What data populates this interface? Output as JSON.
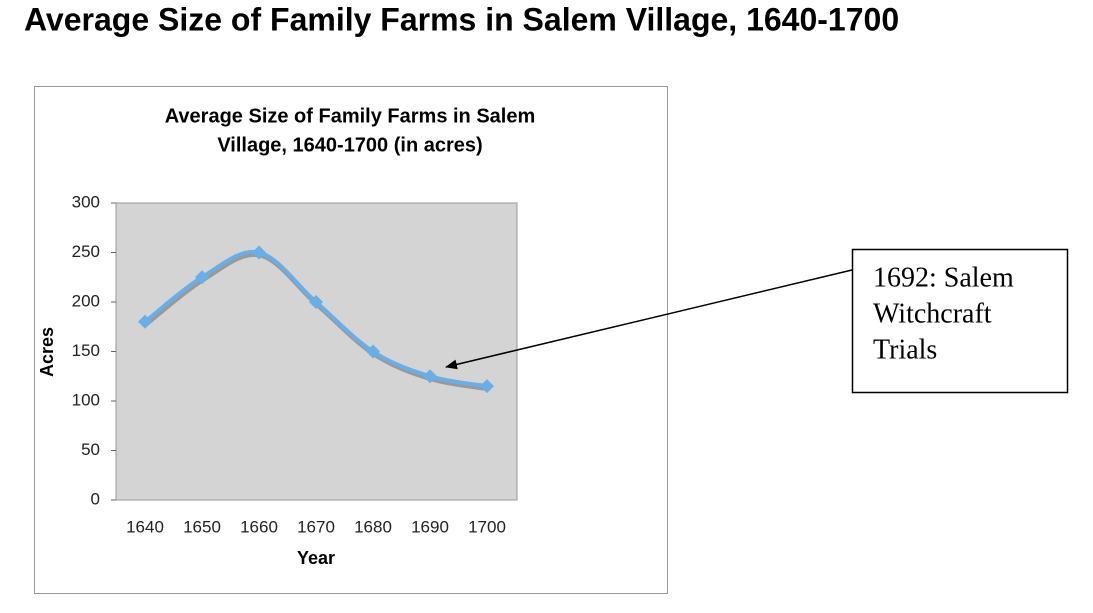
{
  "page_title": "Average Size of Family Farms in Salem Village, 1640-1700",
  "chart_data": {
    "type": "line",
    "title": [
      "Average Size of Family Farms in Salem",
      "Village, 1640-1700 (in acres)"
    ],
    "x_label": "Year",
    "y_label": "Acres",
    "categories": [
      "1640",
      "1650",
      "1660",
      "1670",
      "1680",
      "1690",
      "1700"
    ],
    "series": [
      {
        "name": null,
        "color": "#6aaee8",
        "values": [
          180,
          225,
          250,
          200,
          150,
          125,
          115
        ]
      }
    ],
    "ylim": [
      0,
      300
    ],
    "yticks": [
      0,
      50,
      100,
      150,
      200,
      250,
      300
    ],
    "grid": false,
    "smooth": true
  },
  "annotation": {
    "lines": [
      "1692: Salem",
      "Witchcraft",
      "Trials"
    ]
  }
}
